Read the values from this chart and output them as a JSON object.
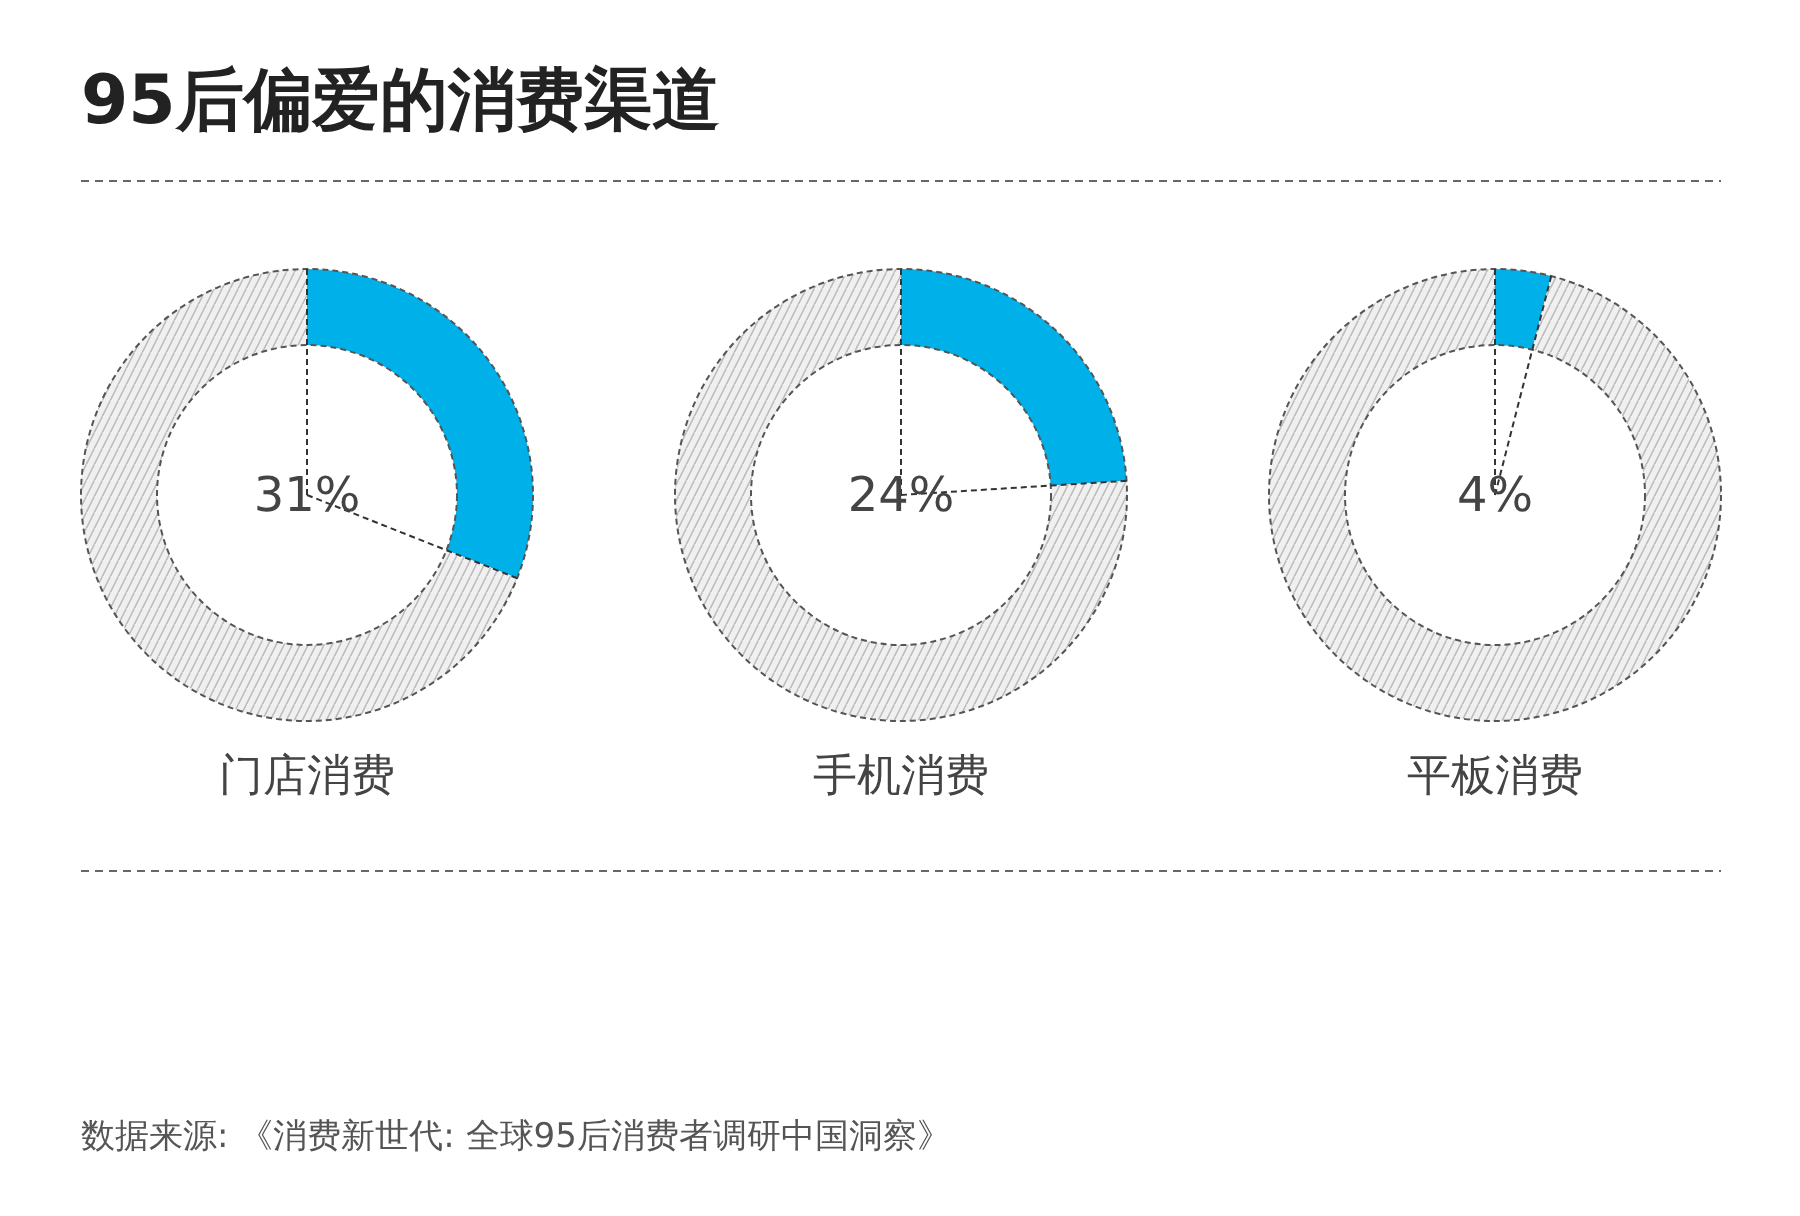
{
  "chart_data": [
    {
      "type": "donut",
      "title": "95后偏爱的消费渠道",
      "xlabel": "门店消费",
      "categories": [
        null,
        null
      ],
      "values": [
        31,
        69
      ],
      "colors": [
        "#00b0e8",
        "#f0f0f0"
      ],
      "annotations": [
        "31%"
      ]
    },
    {
      "type": "donut",
      "xlabel": "手机消费",
      "categories": [
        null,
        null
      ],
      "values": [
        24,
        76
      ],
      "colors": [
        "#00b0e8",
        "#f0f0f0"
      ],
      "annotations": [
        "24%"
      ]
    },
    {
      "type": "donut",
      "xlabel": "平板消费",
      "categories": [
        null,
        null
      ],
      "values": [
        4,
        96
      ],
      "colors": [
        "#00b0e8",
        "#f0f0f0"
      ],
      "annotations": [
        "4%",
        "数据来源: 《消费新世代: 全球95后消费者调研中国洞察》"
      ]
    }
  ]
}
